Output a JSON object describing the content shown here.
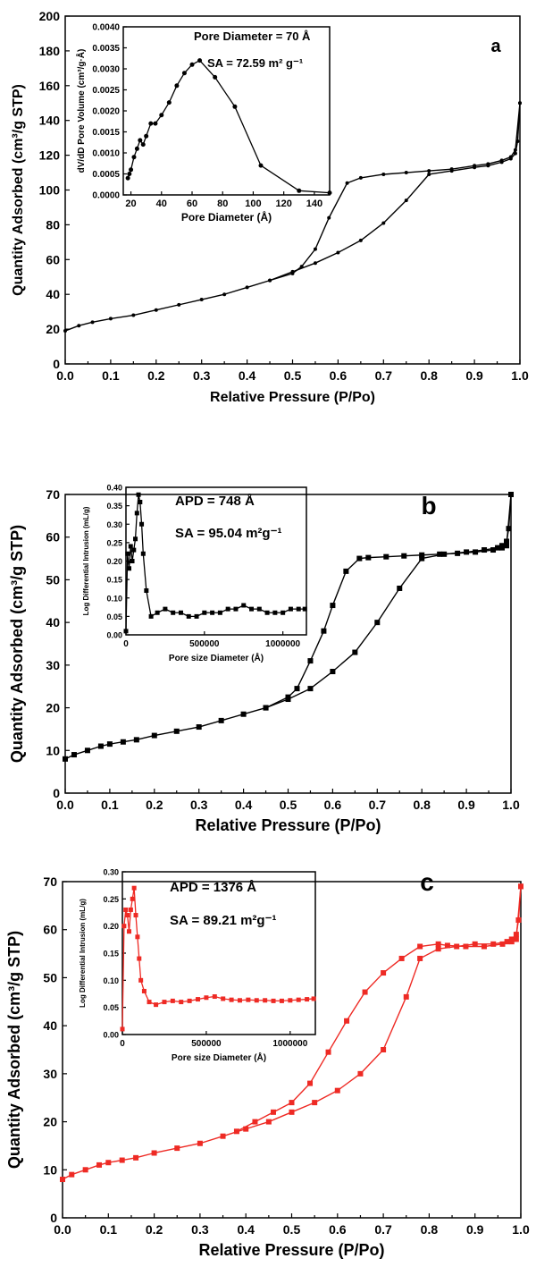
{
  "figure": {
    "background": "#ffffff"
  },
  "chart_data": [
    {
      "panel": "a",
      "type": "line",
      "color": "#000000",
      "marker": "circle",
      "xlabel": "Relative Pressure (P/Po)",
      "ylabel": "Quantity Adsorbed (cm³/g STP)",
      "xlim": [
        0.0,
        1.0
      ],
      "ylim": [
        0,
        200
      ],
      "xticks": [
        "0.0",
        "0.1",
        "0.2",
        "0.3",
        "0.4",
        "0.5",
        "0.6",
        "0.7",
        "0.8",
        "0.9",
        "1.0"
      ],
      "yticks": [
        "0",
        "20",
        "40",
        "60",
        "80",
        "100",
        "120",
        "140",
        "160",
        "180",
        "200"
      ],
      "series": [
        {
          "x": [
            0.0,
            0.03,
            0.06,
            0.1,
            0.15,
            0.2,
            0.25,
            0.3,
            0.35,
            0.4,
            0.45,
            0.5,
            0.55,
            0.6,
            0.65,
            0.7,
            0.75,
            0.8,
            0.85,
            0.9,
            0.93,
            0.96,
            0.98,
            0.99,
            0.995,
            1.0
          ],
          "y": [
            19,
            22,
            24,
            26,
            28,
            31,
            34,
            37,
            40,
            44,
            48,
            53,
            58,
            64,
            71,
            81,
            94,
            109,
            111,
            113,
            114,
            116,
            118,
            121,
            128,
            150
          ]
        },
        {
          "x": [
            1.0,
            0.99,
            0.98,
            0.96,
            0.93,
            0.9,
            0.85,
            0.8,
            0.75,
            0.7,
            0.65,
            0.62,
            0.58,
            0.55,
            0.52,
            0.5,
            0.45
          ],
          "y": [
            150,
            123,
            119,
            117,
            115,
            114,
            112,
            111,
            110,
            109,
            107,
            104,
            84,
            66,
            56,
            52,
            48
          ]
        }
      ],
      "annotation": "a",
      "inset": {
        "type": "line",
        "xlabel": "Pore Diameter  (Å)",
        "ylabel": "dV/dD Pore Volume (cm³/g·Å)",
        "xlim": [
          15,
          150
        ],
        "ylim": [
          0,
          0.004
        ],
        "xticks": [
          "20",
          "40",
          "60",
          "80",
          "100",
          "120",
          "140"
        ],
        "yticks": [
          "0.0000",
          "0.0005",
          "0.0010",
          "0.0015",
          "0.0020",
          "0.0025",
          "0.0030",
          "0.0035",
          "0.0040"
        ],
        "x": [
          18,
          19,
          20,
          22,
          24,
          26,
          28,
          30,
          33,
          36,
          40,
          45,
          50,
          55,
          60,
          65,
          75,
          88,
          105,
          130,
          150
        ],
        "y": [
          0.0004,
          0.0005,
          0.0006,
          0.0009,
          0.0011,
          0.0013,
          0.0012,
          0.0014,
          0.0017,
          0.0017,
          0.0019,
          0.0022,
          0.0026,
          0.0029,
          0.0031,
          0.0032,
          0.0028,
          0.0021,
          0.0007,
          0.0001,
          5e-05
        ],
        "note1": "Pore Diameter = 70 Å",
        "note2": "SA = 72.59 m² g⁻¹"
      }
    },
    {
      "panel": "b",
      "type": "line",
      "color": "#000000",
      "marker": "square",
      "xlabel": "Relative Pressure (P/Po)",
      "ylabel": "Quantity Adsorbed (cm³/g STP)",
      "xlim": [
        0.0,
        1.0
      ],
      "ylim": [
        0,
        70
      ],
      "xticks": [
        "0.0",
        "0.1",
        "0.2",
        "0.3",
        "0.4",
        "0.5",
        "0.6",
        "0.7",
        "0.8",
        "0.9",
        "1.0"
      ],
      "yticks": [
        "0",
        "10",
        "20",
        "30",
        "40",
        "50",
        "60",
        "70"
      ],
      "series": [
        {
          "x": [
            0.0,
            0.02,
            0.05,
            0.08,
            0.1,
            0.13,
            0.16,
            0.2,
            0.25,
            0.3,
            0.35,
            0.4,
            0.45,
            0.5,
            0.55,
            0.6,
            0.65,
            0.7,
            0.75,
            0.8,
            0.85,
            0.9,
            0.94,
            0.97,
            0.98,
            0.99,
            0.995,
            1.0
          ],
          "y": [
            8,
            9,
            10,
            11,
            11.5,
            12,
            12.5,
            13.5,
            14.5,
            15.5,
            17,
            18.5,
            20,
            22,
            24.5,
            28.5,
            33,
            40,
            48,
            55,
            56,
            56.5,
            57,
            57.5,
            58,
            59,
            62,
            70
          ]
        },
        {
          "x": [
            1.0,
            0.99,
            0.98,
            0.96,
            0.92,
            0.88,
            0.84,
            0.8,
            0.76,
            0.72,
            0.68,
            0.66,
            0.63,
            0.6,
            0.58,
            0.55,
            0.52,
            0.5,
            0.45
          ],
          "y": [
            70,
            58,
            57.5,
            57,
            56.5,
            56.2,
            56,
            55.8,
            55.6,
            55.4,
            55.2,
            55,
            52,
            44,
            38,
            31,
            24.5,
            22.5,
            20
          ]
        }
      ],
      "annotation": "b",
      "inset": {
        "type": "line",
        "xlabel": "Pore size Diameter (Å)",
        "ylabel": "Log Differential Intrusion (mL/g)",
        "xlim": [
          0,
          1150000
        ],
        "ylim": [
          0,
          0.4
        ],
        "xticks": [
          "0",
          "500000",
          "1000000"
        ],
        "yticks": [
          "0.00",
          "0.05",
          "0.10",
          "0.15",
          "0.20",
          "0.25",
          "0.30",
          "0.35",
          "0.40"
        ],
        "x": [
          0,
          10000,
          20000,
          30000,
          40000,
          50000,
          60000,
          70000,
          80000,
          90000,
          100000,
          110000,
          130000,
          160000,
          200000,
          250000,
          300000,
          350000,
          400000,
          450000,
          500000,
          550000,
          600000,
          650000,
          700000,
          750000,
          800000,
          850000,
          900000,
          950000,
          1000000,
          1050000,
          1100000,
          1140000
        ],
        "y": [
          0.01,
          0.22,
          0.18,
          0.24,
          0.2,
          0.23,
          0.26,
          0.33,
          0.38,
          0.36,
          0.3,
          0.22,
          0.12,
          0.05,
          0.06,
          0.07,
          0.06,
          0.06,
          0.05,
          0.05,
          0.06,
          0.06,
          0.06,
          0.07,
          0.07,
          0.08,
          0.07,
          0.07,
          0.06,
          0.06,
          0.06,
          0.07,
          0.07,
          0.07
        ],
        "note1": "APD = 748 Å",
        "note2": "SA = 95.04 m²g⁻¹"
      }
    },
    {
      "panel": "c",
      "type": "line",
      "color": "#ee2a24",
      "marker": "square",
      "xlabel": "Relative Pressure (P/Po)",
      "ylabel": "Quantity Adsorbed (cm³/g STP)",
      "xlim": [
        0.0,
        1.0
      ],
      "ylim": [
        0,
        70
      ],
      "xticks": [
        "0.0",
        "0.1",
        "0.2",
        "0.3",
        "0.4",
        "0.5",
        "0.6",
        "0.7",
        "0.8",
        "0.9",
        "1.0"
      ],
      "yticks": [
        "0",
        "10",
        "20",
        "30",
        "40",
        "50",
        "60",
        "70"
      ],
      "series": [
        {
          "x": [
            0.0,
            0.02,
            0.05,
            0.08,
            0.1,
            0.13,
            0.16,
            0.2,
            0.25,
            0.3,
            0.35,
            0.4,
            0.45,
            0.5,
            0.55,
            0.6,
            0.65,
            0.7,
            0.75,
            0.78,
            0.82,
            0.86,
            0.9,
            0.94,
            0.97,
            0.98,
            0.99,
            0.995,
            1.0
          ],
          "y": [
            8,
            9,
            10,
            11,
            11.5,
            12,
            12.5,
            13.5,
            14.5,
            15.5,
            17,
            18.5,
            20,
            22,
            24,
            26.5,
            30,
            35,
            46,
            54,
            56,
            56.5,
            57,
            57,
            57.5,
            58,
            59,
            62,
            69
          ]
        },
        {
          "x": [
            1.0,
            0.99,
            0.98,
            0.96,
            0.92,
            0.88,
            0.84,
            0.82,
            0.78,
            0.74,
            0.7,
            0.66,
            0.62,
            0.58,
            0.54,
            0.5,
            0.46,
            0.42,
            0.38
          ],
          "y": [
            69,
            58,
            57.5,
            57,
            56.5,
            56.5,
            56.7,
            57,
            56.5,
            54,
            51,
            47,
            41,
            34.5,
            28,
            24,
            22,
            20,
            18
          ]
        }
      ],
      "annotation": "c",
      "inset": {
        "type": "line",
        "xlabel": "Pore size Diameter (Å)",
        "ylabel": "Log Differential Intrusion (mL/g)",
        "xlim": [
          0,
          1150000
        ],
        "ylim": [
          0,
          0.3
        ],
        "xticks": [
          "0",
          "500000",
          "1000000"
        ],
        "yticks": [
          "0.00",
          "0.05",
          "0.10",
          "0.15",
          "0.20",
          "0.25",
          "0.30"
        ],
        "x": [
          0,
          10000,
          20000,
          30000,
          40000,
          50000,
          60000,
          70000,
          80000,
          90000,
          100000,
          110000,
          130000,
          160000,
          200000,
          250000,
          300000,
          350000,
          400000,
          450000,
          500000,
          550000,
          600000,
          650000,
          700000,
          750000,
          800000,
          850000,
          900000,
          950000,
          1000000,
          1050000,
          1100000,
          1140000
        ],
        "y": [
          0.01,
          0.2,
          0.23,
          0.22,
          0.19,
          0.23,
          0.25,
          0.27,
          0.22,
          0.18,
          0.14,
          0.1,
          0.08,
          0.06,
          0.055,
          0.06,
          0.062,
          0.06,
          0.062,
          0.065,
          0.068,
          0.07,
          0.066,
          0.064,
          0.063,
          0.064,
          0.063,
          0.063,
          0.062,
          0.062,
          0.063,
          0.064,
          0.065,
          0.066
        ],
        "note1": "APD = 1376 Å",
        "note2": "SA = 89.21 m²g⁻¹"
      }
    }
  ]
}
